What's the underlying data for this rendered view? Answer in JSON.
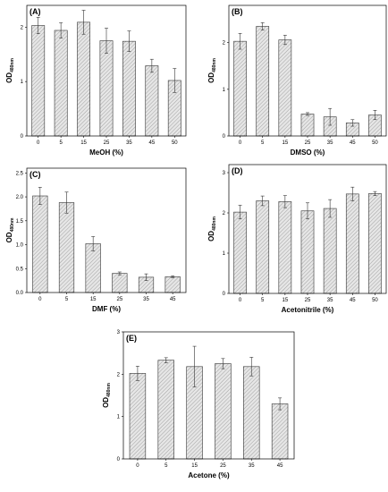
{
  "chart_data": [
    {
      "type": "bar",
      "panel": "(A)",
      "xlabel": "MeOH (%)",
      "ylabel": "OD",
      "ylabel_sub": "480nm",
      "categories": [
        "0",
        "5",
        "15",
        "25",
        "35",
        "45",
        "50"
      ],
      "values": [
        2.03,
        1.94,
        2.09,
        1.75,
        1.74,
        1.29,
        1.02
      ],
      "errors": [
        0.15,
        0.14,
        0.22,
        0.23,
        0.19,
        0.12,
        0.22
      ],
      "ylim": [
        0,
        2.4
      ],
      "yticks": [
        "0",
        "1",
        "2"
      ],
      "ytick_values": [
        0,
        1,
        2
      ]
    },
    {
      "type": "bar",
      "panel": "(B)",
      "xlabel": "DMSO (%)",
      "ylabel": "OD",
      "ylabel_sub": "480nm",
      "categories": [
        "0",
        "5",
        "15",
        "25",
        "35",
        "45",
        "50"
      ],
      "values": [
        2.03,
        2.35,
        2.06,
        0.47,
        0.41,
        0.28,
        0.45
      ],
      "errors": [
        0.17,
        0.08,
        0.1,
        0.03,
        0.18,
        0.07,
        0.1
      ],
      "ylim": [
        0,
        2.8
      ],
      "yticks": [
        "0",
        "1",
        "2"
      ],
      "ytick_values": [
        0,
        1,
        2
      ]
    },
    {
      "type": "bar",
      "panel": "(C)",
      "xlabel": "DMF (%)",
      "ylabel": "OD",
      "ylabel_sub": "480nm",
      "categories": [
        "0",
        "5",
        "15",
        "25",
        "35",
        "45"
      ],
      "values": [
        2.02,
        1.88,
        1.02,
        0.4,
        0.32,
        0.33
      ],
      "errors": [
        0.18,
        0.22,
        0.15,
        0.03,
        0.07,
        0.02
      ],
      "ylim": [
        0,
        2.6
      ],
      "yticks": [
        "0.0",
        "0.5",
        "1.0",
        "1.5",
        "2.0",
        "2.5"
      ],
      "ytick_values": [
        0,
        0.5,
        1,
        1.5,
        2,
        2.5
      ]
    },
    {
      "type": "bar",
      "panel": "(D)",
      "xlabel": "Acetonitrile (%)",
      "ylabel": "OD",
      "ylabel_sub": "480nm",
      "categories": [
        "0",
        "5",
        "15",
        "25",
        "35",
        "45",
        "50"
      ],
      "values": [
        2.02,
        2.3,
        2.28,
        2.05,
        2.11,
        2.47,
        2.48
      ],
      "errors": [
        0.17,
        0.12,
        0.15,
        0.2,
        0.22,
        0.17,
        0.05
      ],
      "ylim": [
        0,
        3.2
      ],
      "yticks": [
        "0",
        "1",
        "2",
        "3"
      ],
      "ytick_values": [
        0,
        1,
        2,
        3
      ]
    },
    {
      "type": "bar",
      "panel": "(E)",
      "xlabel": "Acetone (%)",
      "ylabel": "OD",
      "ylabel_sub": "480nm",
      "categories": [
        "0",
        "5",
        "15",
        "25",
        "35",
        "45"
      ],
      "values": [
        2.02,
        2.33,
        2.18,
        2.25,
        2.18,
        1.3
      ],
      "errors": [
        0.17,
        0.06,
        0.48,
        0.12,
        0.22,
        0.14
      ],
      "ylim": [
        0,
        3
      ],
      "yticks": [
        "0",
        "1",
        "2",
        "3"
      ],
      "ytick_values": [
        0,
        1,
        2,
        3
      ]
    }
  ]
}
